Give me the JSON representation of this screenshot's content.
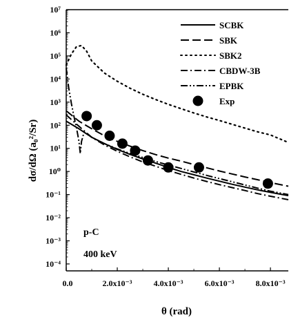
{
  "chart_data": {
    "type": "line",
    "title": "",
    "xlabel": "θ (rad)",
    "ylabel": "dσ/dΩ (a₀²/Sr)",
    "xlim": [
      0,
      0.0087
    ],
    "ylim_log10": [
      -4.3,
      7
    ],
    "y_scale": "log",
    "x_ticks": [
      0,
      0.002,
      0.004,
      0.006,
      0.008
    ],
    "x_tick_labels": [
      "0.0",
      "2.0x10⁻³",
      "4.0x10⁻³",
      "6.0x10⁻³",
      "8.0x10⁻³"
    ],
    "y_ticks_log10": [
      -4,
      -3,
      -2,
      -1,
      0,
      1,
      2,
      3,
      4,
      5,
      6,
      7
    ],
    "y_tick_labels": [
      "10⁻⁴",
      "10⁻³",
      "10⁻²",
      "10⁻¹",
      "10⁰",
      "10¹",
      "10²",
      "10³",
      "10⁴",
      "10⁵",
      "10⁶",
      "10⁷"
    ],
    "legend_position": "top-right",
    "annotations": [
      "p-C",
      "400 keV"
    ],
    "series": [
      {
        "name": "SCBK",
        "style": "solid",
        "x": [
          0,
          0.0005,
          0.001,
          0.0015,
          0.002,
          0.0025,
          0.003,
          0.0035,
          0.004,
          0.0045,
          0.005,
          0.0055,
          0.006,
          0.0065,
          0.007,
          0.0075,
          0.008,
          0.0087
        ],
        "y": [
          150,
          70,
          30,
          16,
          9,
          5.5,
          3.5,
          2.3,
          1.5,
          1.0,
          0.72,
          0.52,
          0.38,
          0.28,
          0.21,
          0.16,
          0.125,
          0.09
        ]
      },
      {
        "name": "SBK",
        "style": "dash",
        "x": [
          0,
          0.0005,
          0.001,
          0.0015,
          0.002,
          0.0025,
          0.003,
          0.0035,
          0.004,
          0.0045,
          0.005,
          0.0055,
          0.006,
          0.0065,
          0.007,
          0.0075,
          0.008,
          0.0087
        ],
        "y": [
          420,
          150,
          70,
          35,
          20,
          12.5,
          8,
          5.4,
          3.8,
          2.8,
          2.0,
          1.45,
          1.05,
          0.78,
          0.58,
          0.44,
          0.33,
          0.23
        ]
      },
      {
        "name": "SBK2",
        "style": "dot",
        "x": [
          0,
          0.0002,
          0.0004,
          0.0006,
          0.0008,
          0.001,
          0.0015,
          0.002,
          0.0025,
          0.003,
          0.0035,
          0.004,
          0.0045,
          0.005,
          0.0055,
          0.006,
          0.0065,
          0.007,
          0.0075,
          0.008,
          0.0087
        ],
        "y": [
          40000,
          120000,
          250000,
          280000,
          160000,
          60000,
          18000,
          8000,
          4000,
          2200,
          1300,
          800,
          520,
          340,
          230,
          160,
          110,
          75,
          52,
          38,
          18
        ]
      },
      {
        "name": "CBDW-3B",
        "style": "dashdot",
        "x": [
          0,
          0.0005,
          0.001,
          0.0015,
          0.002,
          0.0025,
          0.003,
          0.0035,
          0.004,
          0.0045,
          0.005,
          0.0055,
          0.006,
          0.0065,
          0.007,
          0.0075,
          0.008,
          0.0087
        ],
        "y": [
          280,
          90,
          30,
          14,
          7.5,
          4.3,
          2.6,
          1.7,
          1.1,
          0.75,
          0.52,
          0.37,
          0.27,
          0.2,
          0.15,
          0.11,
          0.085,
          0.06
        ]
      },
      {
        "name": "EPBK",
        "style": "dashdotdot",
        "x": [
          0,
          0.0001,
          0.0002,
          0.0003,
          0.0004,
          0.0005,
          0.00055,
          0.0006,
          0.0007,
          0.0008,
          0.001,
          0.0015,
          0.002,
          0.0025,
          0.003,
          0.0035,
          0.004,
          0.0045,
          0.005,
          0.0055,
          0.006,
          0.0065,
          0.007,
          0.0075,
          0.008,
          0.0087
        ],
        "y": [
          30000,
          4000,
          900,
          250,
          80,
          20,
          6,
          20,
          50,
          45,
          30,
          16,
          9.5,
          6,
          4,
          2.7,
          1.9,
          1.35,
          0.95,
          0.68,
          0.49,
          0.36,
          0.26,
          0.19,
          0.14,
          0.1
        ]
      },
      {
        "name": "Exp",
        "style": "marker",
        "x": [
          0.0008,
          0.0012,
          0.0017,
          0.0022,
          0.0027,
          0.0032,
          0.004,
          0.0052,
          0.0079
        ],
        "y": [
          250,
          100,
          35,
          16,
          8,
          3,
          1.5,
          1.5,
          0.3
        ]
      }
    ]
  }
}
